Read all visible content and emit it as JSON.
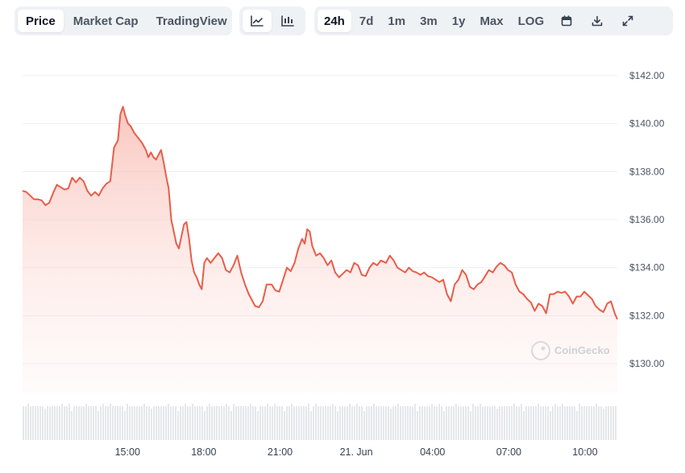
{
  "toolbar": {
    "view_tabs": [
      {
        "label": "Price",
        "active": true
      },
      {
        "label": "Market Cap",
        "active": false
      },
      {
        "label": "TradingView",
        "active": false
      }
    ],
    "chart_type_icons": [
      "line-chart-icon",
      "candlestick-chart-icon"
    ],
    "ranges": [
      {
        "label": "24h",
        "active": true
      },
      {
        "label": "7d",
        "active": false
      },
      {
        "label": "1m",
        "active": false
      },
      {
        "label": "3m",
        "active": false
      },
      {
        "label": "1y",
        "active": false
      },
      {
        "label": "Max",
        "active": false
      },
      {
        "label": "LOG",
        "active": false
      }
    ],
    "action_icons": [
      "calendar-icon",
      "download-icon",
      "expand-icon"
    ]
  },
  "watermark": "CoinGecko",
  "colors": {
    "line": "#e85d4a",
    "fill": "#fde7e4",
    "grid": "#eceff3",
    "volume": "#e5e7eb"
  },
  "chart_data": {
    "type": "area",
    "title": "",
    "xlabel": "",
    "ylabel": "",
    "ylim": [
      128.8,
      142.8
    ],
    "y_ticks": [
      "$130.00",
      "$132.00",
      "$134.00",
      "$136.00",
      "$138.00",
      "$140.00",
      "$142.00"
    ],
    "y_tick_values": [
      130,
      132,
      134,
      136,
      138,
      140,
      142
    ],
    "x_ticks": [
      "15:00",
      "18:00",
      "21:00",
      "21. Jun",
      "04:00",
      "07:00",
      "10:00"
    ],
    "x_tick_values": [
      4.13,
      7.13,
      10.13,
      13.13,
      16.13,
      19.13,
      22.13
    ],
    "x_range": [
      0,
      23.4
    ],
    "series": [
      {
        "values": [
          [
            0.0,
            137.2
          ],
          [
            0.15,
            137.15
          ],
          [
            0.3,
            137.0
          ],
          [
            0.45,
            136.85
          ],
          [
            0.6,
            136.85
          ],
          [
            0.75,
            136.8
          ],
          [
            0.9,
            136.6
          ],
          [
            1.05,
            136.7
          ],
          [
            1.2,
            137.1
          ],
          [
            1.35,
            137.45
          ],
          [
            1.5,
            137.35
          ],
          [
            1.65,
            137.25
          ],
          [
            1.8,
            137.3
          ],
          [
            1.95,
            137.75
          ],
          [
            2.1,
            137.55
          ],
          [
            2.25,
            137.75
          ],
          [
            2.4,
            137.6
          ],
          [
            2.55,
            137.2
          ],
          [
            2.7,
            137.0
          ],
          [
            2.85,
            137.15
          ],
          [
            3.0,
            137.0
          ],
          [
            3.15,
            137.3
          ],
          [
            3.3,
            137.5
          ],
          [
            3.45,
            137.6
          ],
          [
            3.6,
            139.0
          ],
          [
            3.75,
            139.3
          ],
          [
            3.85,
            140.4
          ],
          [
            3.95,
            140.7
          ],
          [
            4.05,
            140.3
          ],
          [
            4.15,
            140.0
          ],
          [
            4.25,
            139.9
          ],
          [
            4.4,
            139.6
          ],
          [
            4.55,
            139.4
          ],
          [
            4.7,
            139.2
          ],
          [
            4.85,
            138.9
          ],
          [
            4.95,
            138.6
          ],
          [
            5.05,
            138.8
          ],
          [
            5.15,
            138.6
          ],
          [
            5.25,
            138.5
          ],
          [
            5.35,
            138.7
          ],
          [
            5.45,
            138.9
          ],
          [
            5.55,
            138.4
          ],
          [
            5.65,
            137.8
          ],
          [
            5.75,
            137.3
          ],
          [
            5.85,
            136.0
          ],
          [
            5.95,
            135.5
          ],
          [
            6.05,
            135.0
          ],
          [
            6.15,
            134.8
          ],
          [
            6.25,
            135.3
          ],
          [
            6.35,
            135.8
          ],
          [
            6.45,
            135.9
          ],
          [
            6.55,
            135.2
          ],
          [
            6.65,
            134.3
          ],
          [
            6.75,
            133.8
          ],
          [
            6.85,
            133.6
          ],
          [
            6.95,
            133.3
          ],
          [
            7.05,
            133.1
          ],
          [
            7.15,
            134.2
          ],
          [
            7.25,
            134.4
          ],
          [
            7.4,
            134.2
          ],
          [
            7.55,
            134.4
          ],
          [
            7.7,
            134.6
          ],
          [
            7.85,
            134.4
          ],
          [
            8.0,
            133.9
          ],
          [
            8.15,
            133.8
          ],
          [
            8.3,
            134.1
          ],
          [
            8.45,
            134.5
          ],
          [
            8.6,
            133.8
          ],
          [
            8.75,
            133.3
          ],
          [
            8.9,
            132.9
          ],
          [
            9.05,
            132.6
          ],
          [
            9.15,
            132.4
          ],
          [
            9.3,
            132.35
          ],
          [
            9.45,
            132.6
          ],
          [
            9.6,
            133.3
          ],
          [
            9.8,
            133.3
          ],
          [
            9.95,
            133.05
          ],
          [
            10.1,
            133.0
          ],
          [
            10.25,
            133.5
          ],
          [
            10.4,
            134.0
          ],
          [
            10.55,
            133.85
          ],
          [
            10.7,
            134.2
          ],
          [
            10.85,
            134.8
          ],
          [
            11.0,
            135.2
          ],
          [
            11.1,
            135.0
          ],
          [
            11.2,
            135.6
          ],
          [
            11.3,
            135.5
          ],
          [
            11.4,
            134.9
          ],
          [
            11.55,
            134.5
          ],
          [
            11.7,
            134.6
          ],
          [
            11.85,
            134.4
          ],
          [
            12.0,
            134.1
          ],
          [
            12.15,
            134.3
          ],
          [
            12.3,
            133.8
          ],
          [
            12.45,
            133.6
          ],
          [
            12.6,
            133.75
          ],
          [
            12.75,
            133.9
          ],
          [
            12.9,
            133.8
          ],
          [
            13.05,
            134.2
          ],
          [
            13.2,
            134.1
          ],
          [
            13.35,
            133.7
          ],
          [
            13.5,
            133.65
          ],
          [
            13.65,
            134.0
          ],
          [
            13.8,
            134.2
          ],
          [
            13.95,
            134.1
          ],
          [
            14.1,
            134.3
          ],
          [
            14.3,
            134.2
          ],
          [
            14.45,
            134.5
          ],
          [
            14.6,
            134.3
          ],
          [
            14.75,
            134.0
          ],
          [
            14.9,
            133.9
          ],
          [
            15.05,
            133.8
          ],
          [
            15.2,
            134.0
          ],
          [
            15.35,
            133.85
          ],
          [
            15.5,
            133.8
          ],
          [
            15.65,
            133.7
          ],
          [
            15.8,
            133.8
          ],
          [
            15.95,
            133.65
          ],
          [
            16.1,
            133.6
          ],
          [
            16.25,
            133.5
          ],
          [
            16.4,
            133.4
          ],
          [
            16.55,
            133.5
          ],
          [
            16.7,
            132.9
          ],
          [
            16.85,
            132.6
          ],
          [
            17.0,
            133.3
          ],
          [
            17.15,
            133.5
          ],
          [
            17.3,
            133.9
          ],
          [
            17.45,
            133.7
          ],
          [
            17.6,
            133.2
          ],
          [
            17.75,
            133.1
          ],
          [
            17.9,
            133.3
          ],
          [
            18.05,
            133.4
          ],
          [
            18.2,
            133.65
          ],
          [
            18.35,
            133.9
          ],
          [
            18.5,
            133.8
          ],
          [
            18.65,
            134.05
          ],
          [
            18.8,
            134.2
          ],
          [
            18.95,
            134.1
          ],
          [
            19.1,
            133.9
          ],
          [
            19.25,
            133.8
          ],
          [
            19.4,
            133.3
          ],
          [
            19.55,
            133.0
          ],
          [
            19.7,
            132.9
          ],
          [
            19.85,
            132.7
          ],
          [
            20.0,
            132.55
          ],
          [
            20.15,
            132.2
          ],
          [
            20.3,
            132.5
          ],
          [
            20.45,
            132.4
          ],
          [
            20.6,
            132.1
          ],
          [
            20.75,
            132.9
          ],
          [
            20.9,
            132.9
          ],
          [
            21.05,
            133.0
          ],
          [
            21.2,
            132.95
          ],
          [
            21.35,
            133.0
          ],
          [
            21.5,
            132.8
          ],
          [
            21.65,
            132.5
          ],
          [
            21.8,
            132.8
          ],
          [
            21.95,
            132.8
          ],
          [
            22.1,
            133.0
          ],
          [
            22.25,
            132.85
          ],
          [
            22.4,
            132.7
          ],
          [
            22.55,
            132.4
          ],
          [
            22.7,
            132.25
          ],
          [
            22.85,
            132.15
          ],
          [
            23.0,
            132.5
          ],
          [
            23.15,
            132.6
          ],
          [
            23.3,
            132.1
          ],
          [
            23.4,
            131.85
          ]
        ]
      }
    ],
    "grid": true,
    "legend": "none"
  }
}
